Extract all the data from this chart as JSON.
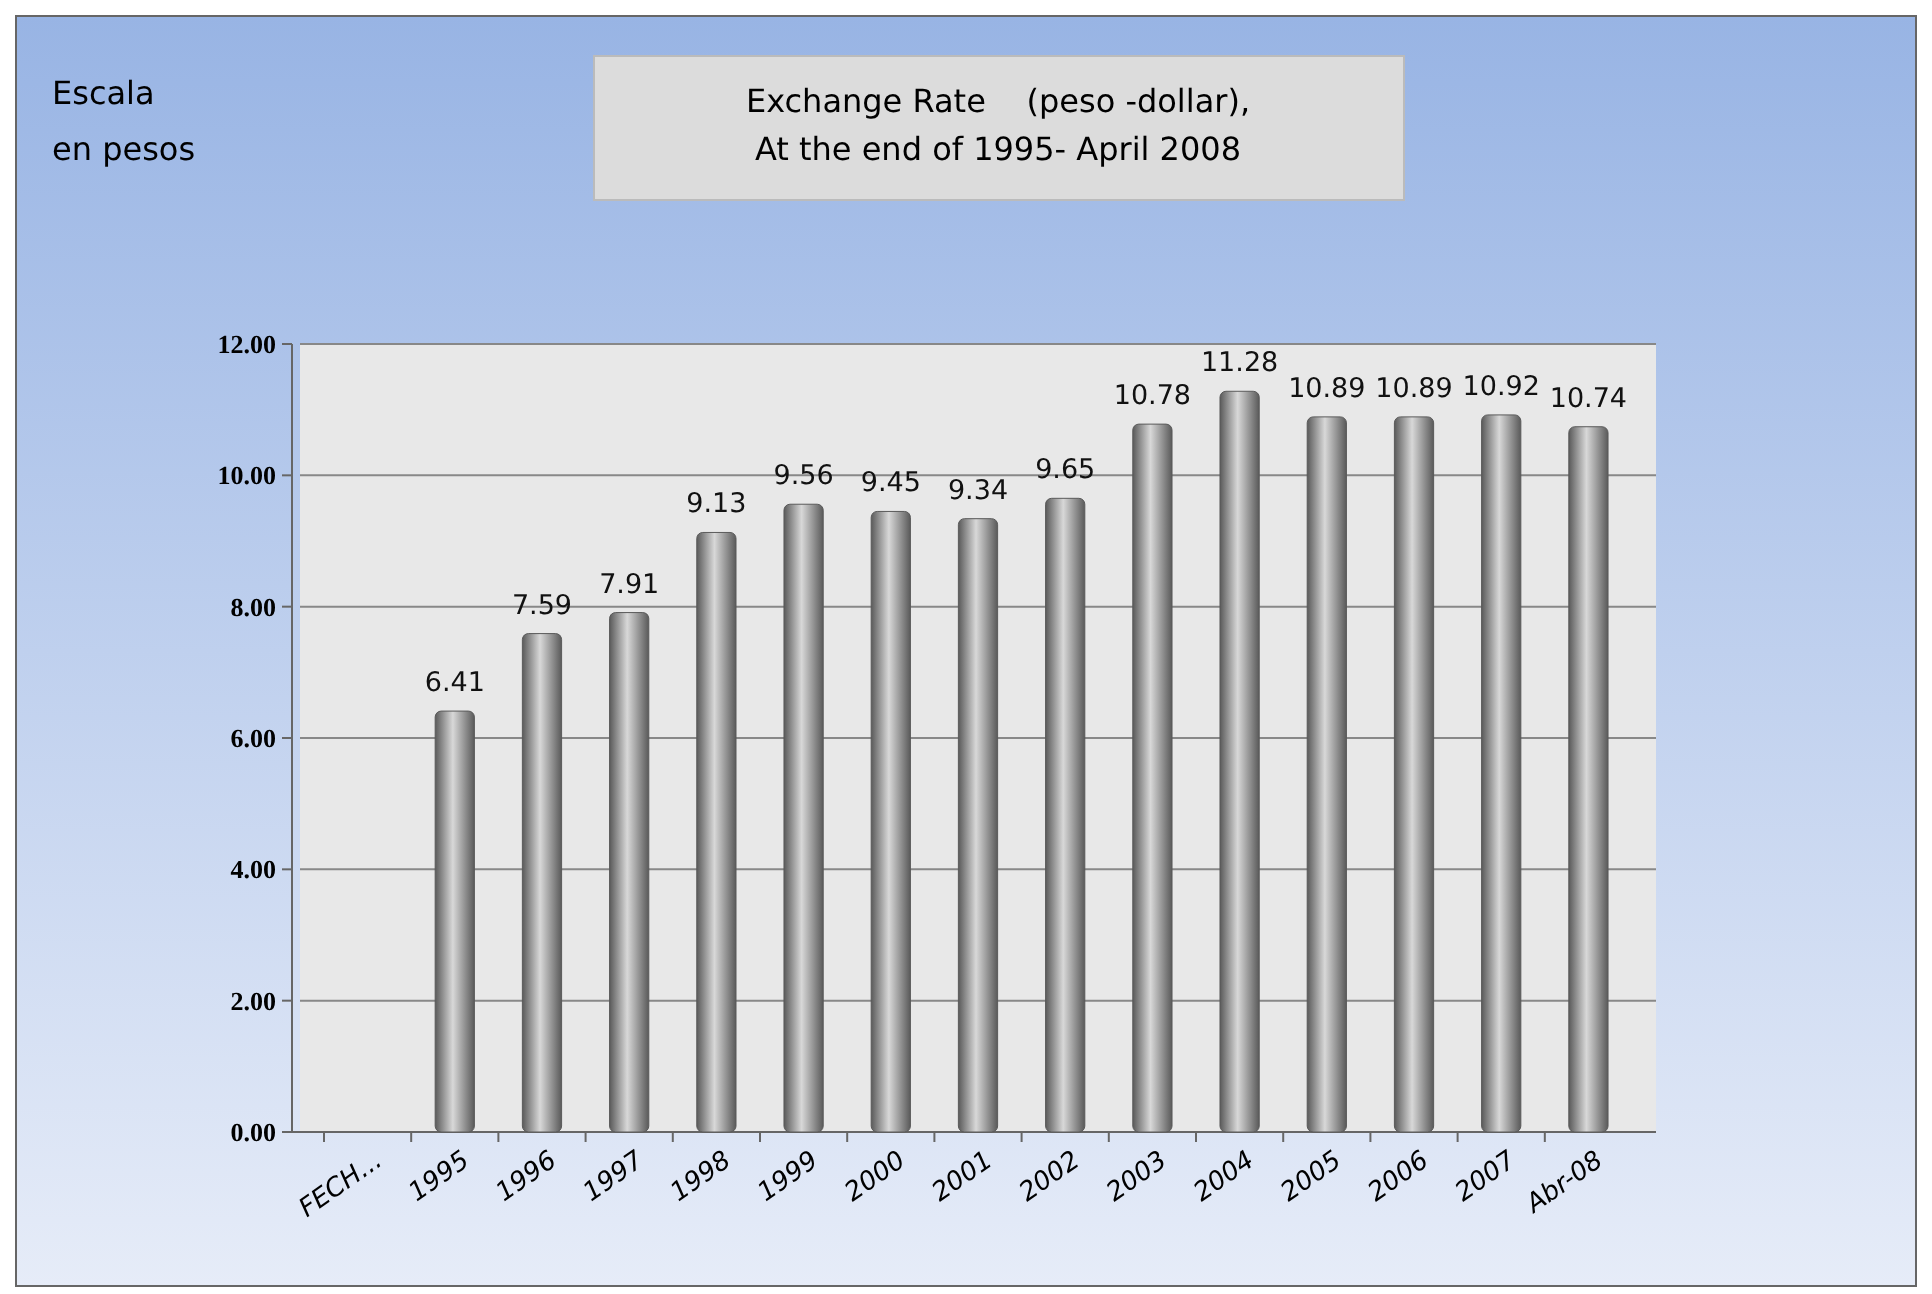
{
  "chart_data": {
    "type": "bar",
    "title": "Exchange Rate    (peso -dollar),\nAt the end of 1995- April 2008",
    "annotations": [
      "Escala\nen pesos"
    ],
    "categories": [
      "FECH...",
      "1995",
      "1996",
      "1997",
      "1998",
      "1999",
      "2000",
      "2001",
      "2002",
      "2003",
      "2004",
      "2005",
      "2006",
      "2007",
      "Abr-08"
    ],
    "values": [
      null,
      6.41,
      7.59,
      7.91,
      9.13,
      9.56,
      9.45,
      9.34,
      9.65,
      10.78,
      11.28,
      10.89,
      10.89,
      10.92,
      10.74
    ],
    "color": "#5a5a5a",
    "ylim": [
      0,
      12
    ],
    "yticks": [
      {
        "value": 0,
        "label": "0.00"
      },
      {
        "value": 2,
        "label": "2.00"
      },
      {
        "value": 4,
        "label": "4.00"
      },
      {
        "value": 6,
        "label": "6.00"
      },
      {
        "value": 8,
        "label": "8.00"
      },
      {
        "value": 10,
        "label": "10.00"
      },
      {
        "value": 12,
        "label": "12.00"
      }
    ],
    "grid": "y",
    "data_labels": true
  }
}
